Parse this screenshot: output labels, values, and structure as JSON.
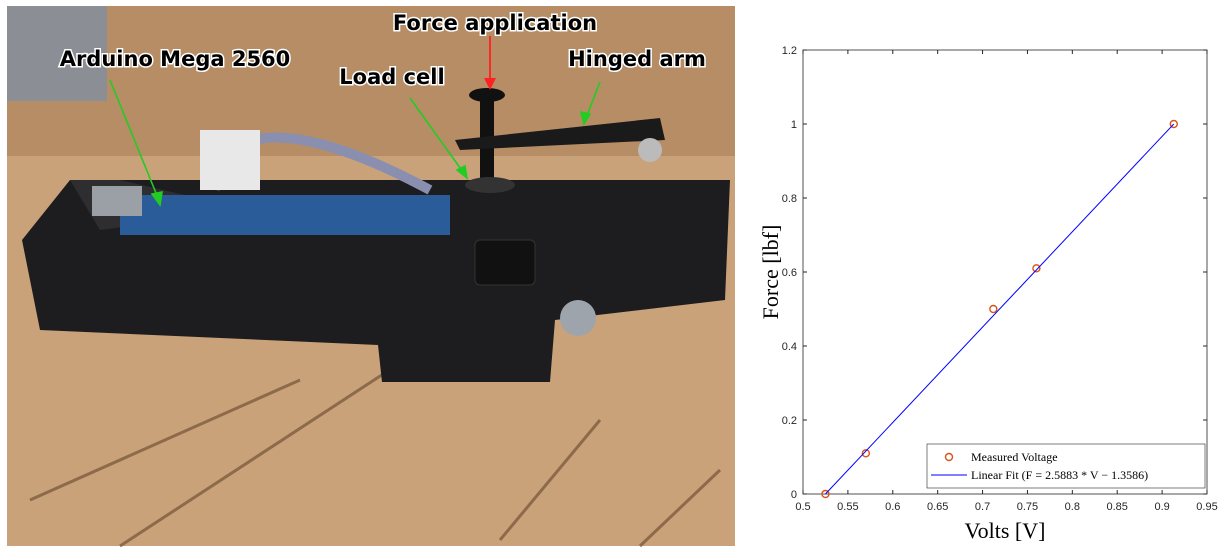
{
  "photo": {
    "labels": {
      "arduino": "Arduino Mega 2560",
      "force": "Force application",
      "load_cell": "Load cell",
      "arm": "Hinged arm"
    }
  },
  "chart_data": {
    "type": "scatter",
    "xlabel": "Volts [V]",
    "ylabel": "Force [lbf]",
    "xlim": [
      0.5,
      0.95
    ],
    "xticks": [
      0.5,
      0.55,
      0.6,
      0.65,
      0.7,
      0.75,
      0.8,
      0.85,
      0.9,
      0.95
    ],
    "ylim": [
      0,
      1.2
    ],
    "yticks": [
      0,
      0.2,
      0.4,
      0.6,
      0.8,
      1,
      1.2
    ],
    "legend": "lower right",
    "series": [
      {
        "name": "Measured Voltage",
        "color": "#d95319",
        "style": "markers",
        "x": [
          0.525,
          0.57,
          0.712,
          0.76,
          0.913
        ],
        "values": [
          0,
          0.11,
          0.5,
          0.61,
          1.0
        ]
      },
      {
        "name": "Linear Fit (F = 2.5883 * V − 1.3586)",
        "color": "#0000ff",
        "style": "line",
        "x": [
          0.525,
          0.913
        ],
        "values": [
          0,
          1.0
        ]
      }
    ]
  }
}
